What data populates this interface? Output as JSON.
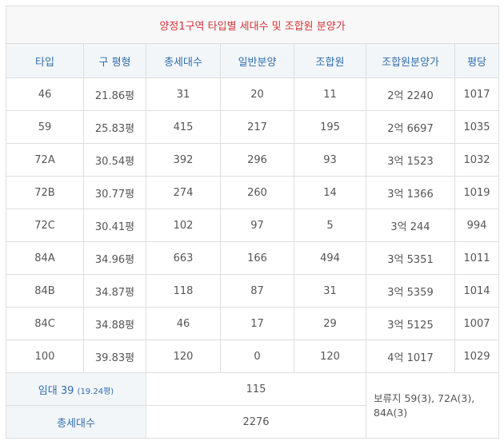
{
  "title": "양정1구역 타입별 세대수 및 조합원 분양가",
  "headers": [
    "타입",
    "구 평형",
    "총세대수",
    "일반분양",
    "조합원",
    "조합원분양가",
    "평당"
  ],
  "rows": [
    {
      "type": "46",
      "pyeong": "21.86평",
      "total": "31",
      "general": "20",
      "member": "11",
      "price": "2억 2240",
      "per": "1017"
    },
    {
      "type": "59",
      "pyeong": "25.83평",
      "total": "415",
      "general": "217",
      "member": "195",
      "price": "2억 6697",
      "per": "1035"
    },
    {
      "type": "72A",
      "pyeong": "30.54평",
      "total": "392",
      "general": "296",
      "member": "93",
      "price": "3억 1523",
      "per": "1032"
    },
    {
      "type": "72B",
      "pyeong": "30.77평",
      "total": "274",
      "general": "260",
      "member": "14",
      "price": "3억 1366",
      "per": "1019"
    },
    {
      "type": "72C",
      "pyeong": "30.41평",
      "total": "102",
      "general": "97",
      "member": "5",
      "price": "3억 244",
      "per": "994"
    },
    {
      "type": "84A",
      "pyeong": "34.96평",
      "total": "663",
      "general": "166",
      "member": "494",
      "price": "3억 5351",
      "per": "1011"
    },
    {
      "type": "84B",
      "pyeong": "34.87평",
      "total": "118",
      "general": "87",
      "member": "31",
      "price": "3억 5359",
      "per": "1014"
    },
    {
      "type": "84C",
      "pyeong": "34.88평",
      "total": "46",
      "general": "17",
      "member": "29",
      "price": "3억 5125",
      "per": "1007"
    },
    {
      "type": "100",
      "pyeong": "39.83평",
      "total": "120",
      "general": "0",
      "member": "120",
      "price": "4억 1017",
      "per": "1029"
    }
  ],
  "rental": {
    "label": "임대 39",
    "sub": "(19.24평)",
    "value": "115"
  },
  "total_row": {
    "label": "총세대수",
    "value": "2276"
  },
  "note": "보류지 59(3), 72A(3), 84A(3)"
}
